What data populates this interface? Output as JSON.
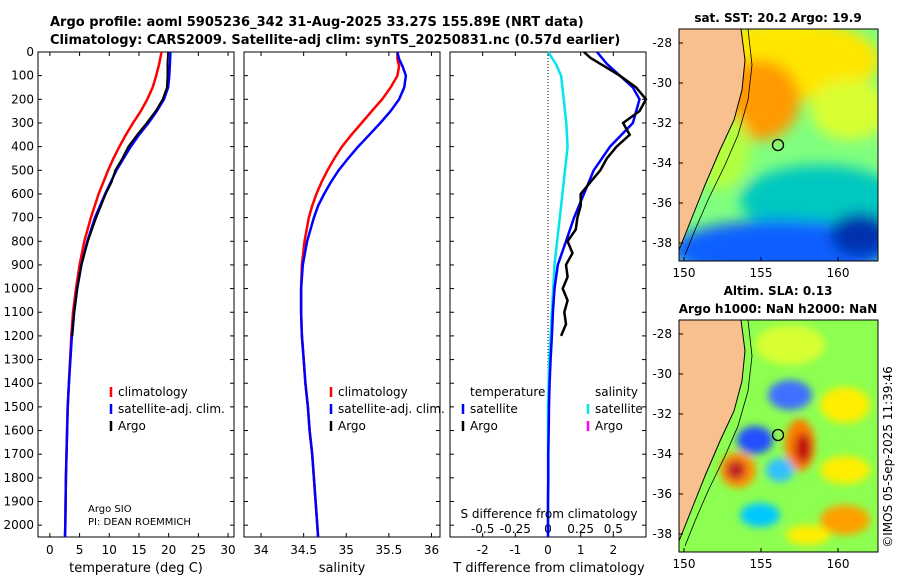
{
  "header": {
    "line1": "Argo profile: aoml 5905236_342 31-Aug-2025 33.27S 155.89E (NRT data)",
    "line2": "Climatology: CARS2009. Satellite-adj clim: synTS_20250831.nc (0.57d earlier)"
  },
  "map_top": {
    "title": "sat. SST: 20.2  Argo: 19.9",
    "yticks": [
      "-28",
      "-30",
      "-32",
      "-34",
      "-36",
      "-38"
    ],
    "xticks": [
      "150",
      "155",
      "160"
    ]
  },
  "map_bottom": {
    "title1": "Altim. SLA: 0.13",
    "title2": "Argo h1000: NaN h2000: NaN",
    "yticks": [
      "-28",
      "-30",
      "-32",
      "-34",
      "-36",
      "-38"
    ],
    "xticks": [
      "150",
      "155",
      "160"
    ]
  },
  "footer": {
    "stamp": "©IMOS 05-Sep-2025 11:39:46",
    "float_info1": "Argo SIO",
    "float_info2": "PI: DEAN ROEMMICH"
  },
  "colors": {
    "climatology": "#ff0000",
    "satellite": "#0000ff",
    "argo": "#000000",
    "sal_satellite": "#00e5ee",
    "sal_argo": "#ff00ff"
  },
  "chart_data": [
    {
      "type": "line",
      "xlabel": "temperature (deg C)",
      "ylabel": "",
      "xlim": [
        -2,
        31
      ],
      "ylim": [
        2050,
        0
      ],
      "xticks": [
        "0",
        "5",
        "10",
        "15",
        "20",
        "25",
        "30"
      ],
      "yticks": [
        "0",
        "100",
        "200",
        "300",
        "400",
        "500",
        "600",
        "700",
        "800",
        "900",
        "1000",
        "1100",
        "1200",
        "1300",
        "1400",
        "1500",
        "1600",
        "1700",
        "1800",
        "1900",
        "2000"
      ],
      "legend": [
        "climatology",
        "satellite-adj. clim.",
        "Argo"
      ],
      "series": [
        {
          "name": "climatology",
          "depth": [
            0,
            50,
            100,
            150,
            200,
            250,
            300,
            350,
            400,
            450,
            500,
            600,
            700,
            800,
            900,
            1000,
            1100,
            1200,
            1300,
            1400,
            1500,
            1600,
            1700,
            1800,
            1900,
            2000,
            2050
          ],
          "values": [
            18.8,
            18.4,
            17.9,
            17.3,
            16.4,
            15.3,
            14.0,
            12.8,
            11.7,
            10.7,
            9.8,
            8.2,
            6.9,
            5.8,
            5.0,
            4.4,
            3.9,
            3.6,
            3.4,
            3.2,
            3.0,
            2.9,
            2.8,
            2.7,
            2.65,
            2.6,
            2.55
          ]
        },
        {
          "name": "satellite-adj. clim.",
          "depth": [
            0,
            50,
            100,
            150,
            200,
            250,
            300,
            350,
            400,
            450,
            500,
            600,
            700,
            800,
            900,
            1000,
            1100,
            1200,
            1300,
            1400,
            1500,
            1600,
            1700,
            1800,
            1900,
            2000,
            2050
          ],
          "values": [
            20.3,
            20.2,
            20.1,
            19.9,
            19.2,
            18.0,
            16.6,
            15.0,
            13.6,
            12.4,
            11.2,
            9.3,
            7.6,
            6.3,
            5.3,
            4.6,
            4.1,
            3.7,
            3.45,
            3.2,
            3.0,
            2.9,
            2.8,
            2.7,
            2.65,
            2.6,
            2.55
          ]
        },
        {
          "name": "Argo",
          "depth": [
            0,
            50,
            100,
            150,
            200,
            250,
            300,
            350,
            400,
            450,
            500,
            550,
            600,
            650,
            700,
            800,
            900,
            1000,
            1100,
            1200
          ],
          "values": [
            19.9,
            19.8,
            19.8,
            19.7,
            19.0,
            17.8,
            16.3,
            14.7,
            13.2,
            12.2,
            11.0,
            10.4,
            9.4,
            8.6,
            7.8,
            6.4,
            5.3,
            4.6,
            4.1,
            3.8
          ]
        }
      ]
    },
    {
      "type": "line",
      "xlabel": "salinity",
      "xlim": [
        33.8,
        36.1
      ],
      "ylim": [
        2050,
        0
      ],
      "xticks": [
        "34",
        "34.5",
        "35",
        "35.5",
        "36"
      ],
      "legend": [
        "climatology",
        "satellite-adj. clim.",
        "Argo"
      ],
      "series": [
        {
          "name": "climatology",
          "depth": [
            0,
            30,
            60,
            100,
            150,
            200,
            250,
            300,
            350,
            400,
            450,
            500,
            550,
            600,
            650,
            700,
            800,
            900,
            1000,
            1100,
            1200,
            1300,
            1400,
            1500,
            1600,
            1700,
            1800,
            1900,
            2000,
            2050
          ],
          "values": [
            35.6,
            35.6,
            35.62,
            35.6,
            35.52,
            35.42,
            35.3,
            35.18,
            35.06,
            34.95,
            34.86,
            34.78,
            34.71,
            34.65,
            34.6,
            34.56,
            34.51,
            34.48,
            34.47,
            34.47,
            34.48,
            34.5,
            34.52,
            34.55,
            34.57,
            34.6,
            34.62,
            34.64,
            34.66,
            34.67
          ]
        },
        {
          "name": "satellite-adj. clim.",
          "depth": [
            0,
            30,
            60,
            100,
            150,
            200,
            250,
            300,
            350,
            400,
            450,
            500,
            550,
            600,
            650,
            700,
            800,
            900,
            1000,
            1100,
            1200,
            1300,
            1400,
            1500,
            1600,
            1700,
            1800,
            1900,
            2000,
            2050
          ],
          "values": [
            35.6,
            35.62,
            35.66,
            35.7,
            35.68,
            35.62,
            35.52,
            35.4,
            35.27,
            35.14,
            35.02,
            34.91,
            34.82,
            34.74,
            34.67,
            34.62,
            34.54,
            34.49,
            34.47,
            34.47,
            34.48,
            34.5,
            34.52,
            34.55,
            34.57,
            34.6,
            34.62,
            34.64,
            34.66,
            34.67
          ]
        },
        {
          "name": "Argo",
          "depth": [],
          "values": []
        }
      ]
    },
    {
      "type": "line",
      "xlabel": "T difference from climatology",
      "secondary_xlabel": "S difference from climatology",
      "xlim": [
        -3,
        3
      ],
      "ylim": [
        2050,
        0
      ],
      "xticks": [
        "-2",
        "-1",
        "0",
        "1",
        "2"
      ],
      "secondary_xticks": [
        "-0.5",
        "-0.25",
        "0",
        "0.25",
        "0.5"
      ],
      "legend_temperature_title": "temperature",
      "legend_salinity_title": "salinity",
      "legend_temperature": [
        "satellite",
        "Argo"
      ],
      "legend_salinity": [
        "satellite",
        "Argo"
      ],
      "series": [
        {
          "name": "temperature satellite",
          "depth": [
            0,
            50,
            100,
            150,
            200,
            300,
            400,
            500,
            600,
            700,
            800,
            900,
            1000,
            1100,
            1200,
            1300,
            1400,
            1500,
            1600,
            1700,
            1800,
            1900,
            2000,
            2050
          ],
          "values": [
            1.5,
            1.8,
            2.2,
            2.6,
            2.8,
            2.6,
            1.9,
            1.4,
            1.1,
            0.8,
            0.55,
            0.3,
            0.2,
            0.15,
            0.12,
            0.08,
            0.05,
            0.03,
            0.02,
            0.01,
            0.01,
            0.0,
            0.0,
            0.0
          ]
        },
        {
          "name": "temperature Argo",
          "depth": [
            0,
            25,
            50,
            75,
            100,
            150,
            200,
            250,
            300,
            350,
            400,
            450,
            500,
            550,
            600,
            650,
            700,
            750,
            800,
            850,
            900,
            950,
            1000,
            1050,
            1100,
            1150,
            1200
          ],
          "values": [
            1.1,
            1.3,
            1.6,
            1.9,
            2.2,
            2.7,
            3.0,
            2.8,
            2.3,
            2.5,
            2.1,
            1.8,
            1.6,
            1.3,
            1.0,
            1.0,
            0.9,
            0.85,
            0.6,
            0.75,
            0.55,
            0.6,
            0.45,
            0.6,
            0.5,
            0.55,
            0.4
          ]
        },
        {
          "name": "salinity satellite",
          "depth": [
            0,
            50,
            100,
            200,
            300,
            400,
            500,
            600,
            700,
            800,
            900,
            1000,
            1100,
            1200,
            1300,
            1500,
            1700,
            1900,
            2050
          ],
          "values": [
            0.0,
            0.06,
            0.1,
            0.12,
            0.14,
            0.15,
            0.13,
            0.11,
            0.09,
            0.07,
            0.05,
            0.04,
            0.03,
            0.02,
            0.01,
            0.0,
            0.0,
            0.0,
            0.0
          ]
        }
      ]
    }
  ]
}
